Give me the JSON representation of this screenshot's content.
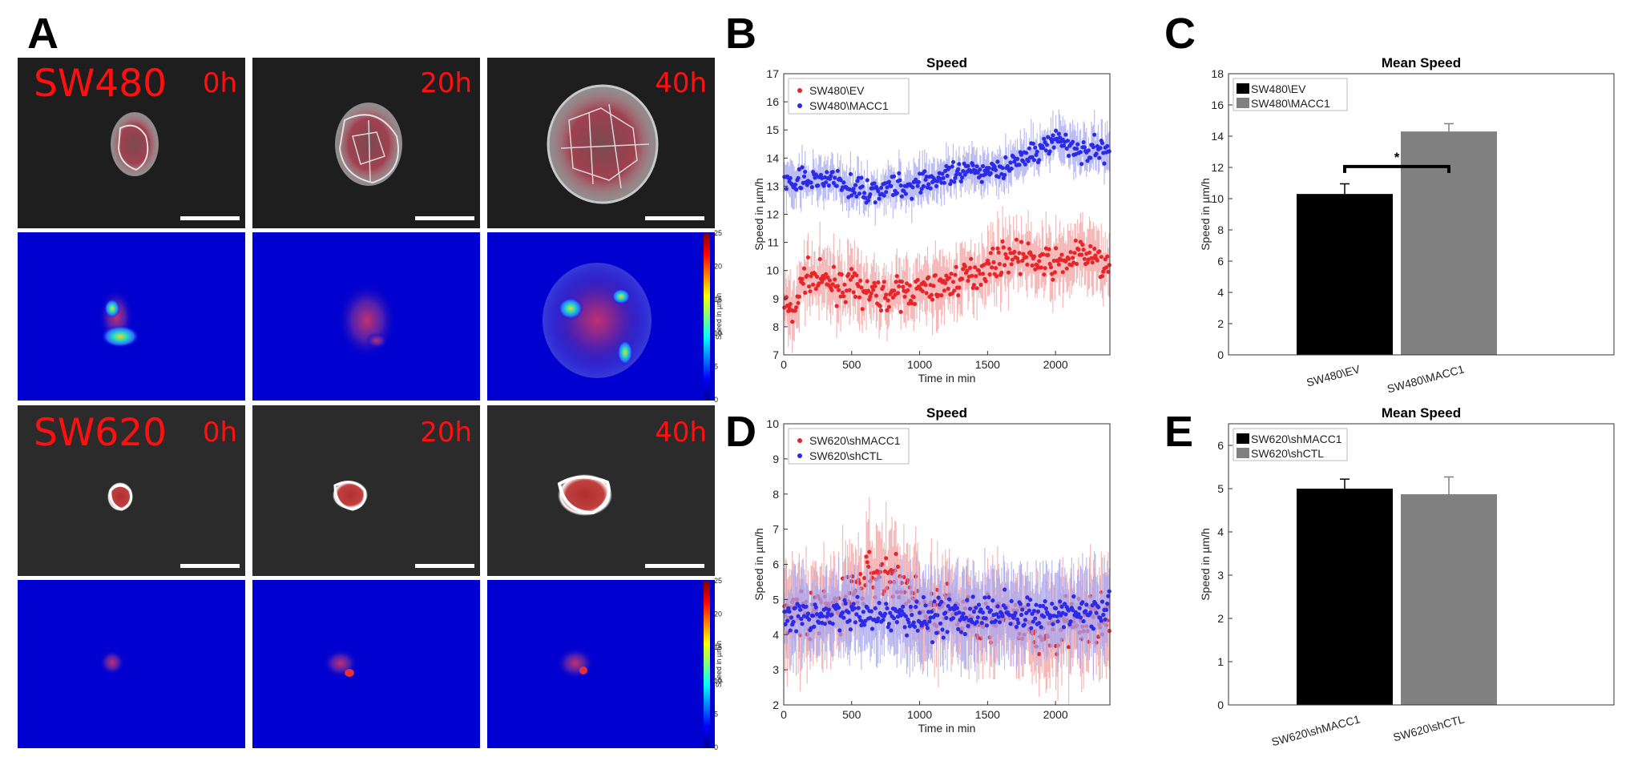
{
  "panels": {
    "A": "A",
    "B": "B",
    "C": "C",
    "D": "D",
    "E": "E"
  },
  "microscopy": {
    "rows": [
      {
        "line": "SW480",
        "times": [
          "0h",
          "20h",
          "40h"
        ]
      },
      {
        "line": "SW620",
        "times": [
          "0h",
          "20h",
          "40h"
        ]
      }
    ],
    "colorbar": {
      "label": "Speed in µm/h",
      "ticks": [
        "25",
        "20",
        "15",
        "10",
        "5",
        "0"
      ]
    }
  },
  "chart_data": [
    {
      "id": "B",
      "type": "scatter",
      "title": "Speed",
      "xlabel": "Time in min",
      "ylabel": "Speed in µm/h",
      "xlim": [
        0,
        2400
      ],
      "ylim": [
        7,
        17
      ],
      "xticks": [
        "0",
        "500",
        "1000",
        "1500",
        "2000"
      ],
      "yticks": [
        "7",
        "8",
        "9",
        "10",
        "11",
        "12",
        "13",
        "14",
        "15",
        "16",
        "17"
      ],
      "series": [
        {
          "name": "SW480\\EV",
          "color": "#e8262a",
          "band_color": "#f2a0a0",
          "profile_x": [
            0,
            60,
            150,
            300,
            500,
            700,
            850,
            1000,
            1200,
            1400,
            1600,
            1700,
            1800,
            2000,
            2200,
            2400
          ],
          "profile_y": [
            9.0,
            8.3,
            9.8,
            9.6,
            9.4,
            9.1,
            9.2,
            9.3,
            9.5,
            9.9,
            10.4,
            10.6,
            10.4,
            10.2,
            10.6,
            10.1
          ],
          "noise": 0.5,
          "band": 0.9
        },
        {
          "name": "SW480\\MACC1",
          "color": "#2a2ae8",
          "band_color": "#a6a6f2",
          "profile_x": [
            0,
            100,
            300,
            500,
            700,
            900,
            1000,
            1200,
            1400,
            1600,
            1800,
            2000,
            2100,
            2200,
            2400
          ],
          "profile_y": [
            13.0,
            13.1,
            13.3,
            12.9,
            12.9,
            13.0,
            13.2,
            13.3,
            13.5,
            13.7,
            14.0,
            14.7,
            14.5,
            14.2,
            14.4
          ],
          "noise": 0.4,
          "band": 0.6
        }
      ]
    },
    {
      "id": "C",
      "type": "bar",
      "title": "Mean Speed",
      "ylabel": "Speed in µm/h",
      "ylim": [
        0,
        18
      ],
      "yticks": [
        "0",
        "2",
        "4",
        "6",
        "8",
        "10",
        "12",
        "14",
        "16",
        "18"
      ],
      "categories": [
        "SW480\\EV",
        "SW480\\MACC1"
      ],
      "values": [
        10.3,
        14.3
      ],
      "errors": [
        0.65,
        0.5
      ],
      "colors": [
        "#000000",
        "#808080"
      ],
      "significance": "*"
    },
    {
      "id": "D",
      "type": "scatter",
      "title": "Speed",
      "xlabel": "Time in min",
      "ylabel": "Speed in µm/h",
      "xlim": [
        0,
        2400
      ],
      "ylim": [
        2,
        10
      ],
      "xticks": [
        "0",
        "500",
        "1000",
        "1500",
        "2000"
      ],
      "yticks": [
        "2",
        "3",
        "4",
        "5",
        "6",
        "7",
        "8",
        "9",
        "10"
      ],
      "series": [
        {
          "name": "SW620\\shMACC1",
          "color": "#e8262a",
          "band_color": "#f2a0a0",
          "profile_x": [
            0,
            200,
            400,
            550,
            700,
            850,
            950,
            1100,
            1300,
            1500,
            1700,
            1900,
            2100,
            2400
          ],
          "profile_y": [
            4.8,
            4.5,
            4.8,
            5.4,
            5.8,
            5.5,
            5.0,
            4.6,
            4.7,
            4.5,
            4.4,
            4.0,
            4.3,
            4.5
          ],
          "noise": 0.7,
          "band": 1.1
        },
        {
          "name": "SW620\\shCTL",
          "color": "#2a2ae8",
          "band_color": "#a6a6f2",
          "profile_x": [
            0,
            200,
            400,
            600,
            800,
            1000,
            1200,
            1400,
            1600,
            1800,
            2000,
            2200,
            2400
          ],
          "profile_y": [
            4.7,
            4.5,
            4.6,
            4.4,
            4.5,
            4.5,
            4.6,
            4.5,
            4.7,
            4.5,
            4.7,
            4.6,
            4.8
          ],
          "noise": 0.5,
          "band": 1.0
        }
      ]
    },
    {
      "id": "E",
      "type": "bar",
      "title": "Mean Speed",
      "ylabel": "Speed in µm/h",
      "ylim": [
        0,
        6.5
      ],
      "yticks": [
        "0",
        "1",
        "2",
        "3",
        "4",
        "5",
        "6"
      ],
      "categories": [
        "SW620\\shMACC1",
        "SW620\\shCTL"
      ],
      "values": [
        5.0,
        4.87
      ],
      "errors": [
        0.22,
        0.4
      ],
      "colors": [
        "#000000",
        "#808080"
      ]
    }
  ]
}
